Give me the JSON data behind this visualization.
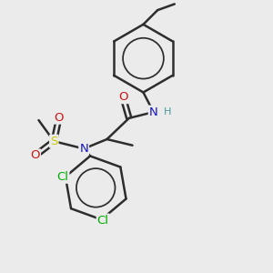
{
  "bg_color": "#ebebeb",
  "bond_color": "#2d2d2d",
  "bond_width": 1.8,
  "atom_colors": {
    "C": "#2d2d2d",
    "N": "#1414cc",
    "O": "#cc1414",
    "S": "#cccc00",
    "Cl": "#00aa00",
    "H": "#4a9a9a"
  },
  "font_size": 9.5,
  "figsize": [
    3.0,
    3.0
  ],
  "dpi": 100
}
